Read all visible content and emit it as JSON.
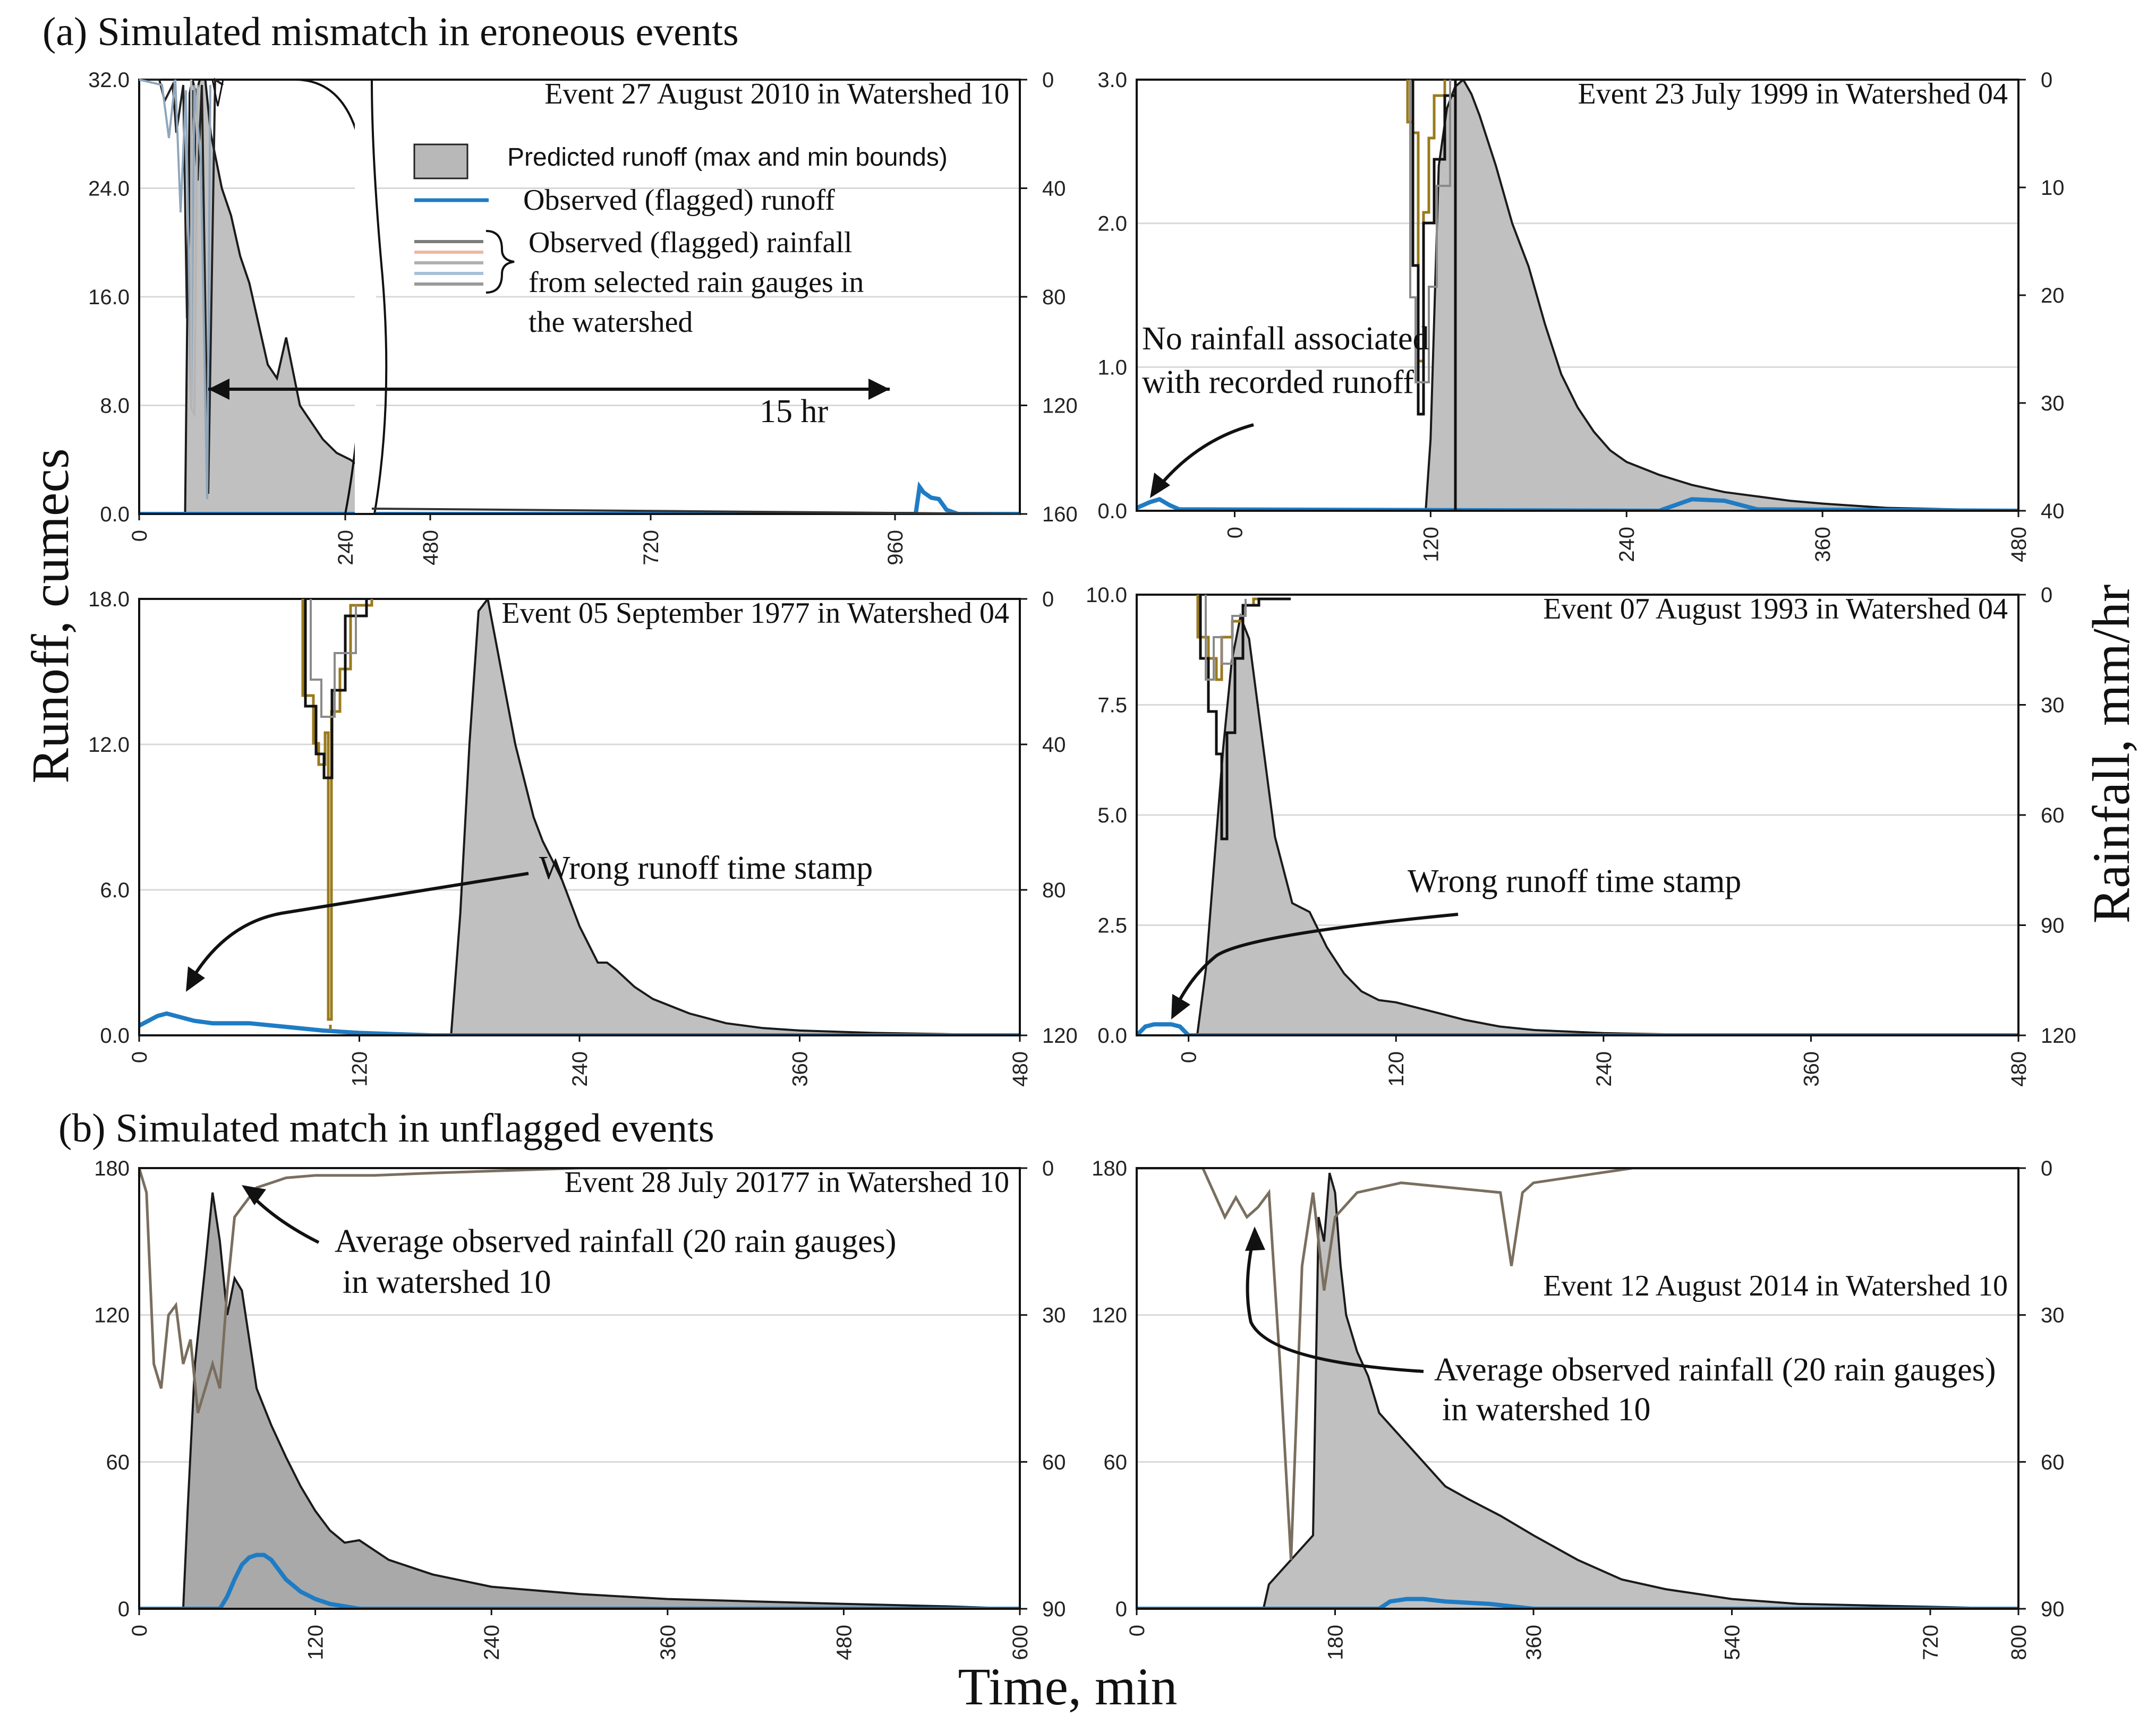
{
  "figure": {
    "section_a": "(a) Simulated mismatch in eroneous events",
    "section_b": "(b) Simulated match in unflagged events",
    "ylabel_left": "Runoff, cumecs",
    "ylabel_right": "Rainfall, mm/hr",
    "xlabel": "Time, min"
  },
  "legend": {
    "predicted": "Predicted runoff (max and min bounds)",
    "observed_runoff": "Observed (flagged) runoff",
    "rain_line1": "Observed (flagged) rainfall",
    "rain_line2": "from selected rain gauges in",
    "rain_line3": "the watershed"
  },
  "annotations": {
    "hr15": "15 hr",
    "norain1": "No rainfall associated",
    "norain2": "with recorded runoff",
    "wrong_ts": "Wrong runoff time stamp",
    "avg_rain1": "Average observed rainfall (20 rain gauges)",
    "avg_rain2": "in watershed 10"
  },
  "colors": {
    "fill": "#c0c0c0",
    "fill_dark": "#a9a9a9",
    "outline": "#1a1a1a",
    "runoff": "#1f7cc4",
    "rain_gold": "#9a7a1e",
    "rain_grey": "#8a8a8a",
    "rain_avg": "#7a6e5e",
    "grid": "#d8d8d8"
  },
  "chart_data": [
    {
      "id": "p1",
      "type": "area",
      "title": "Event 27 August 2010 in Watershed 10",
      "xlabel": "Time, min",
      "ylabel": "Runoff, cumecs",
      "y2label": "Rainfall, mm/hr",
      "xlim": [
        0,
        1080
      ],
      "ylim": [
        0,
        32
      ],
      "y2lim": [
        0,
        160
      ],
      "y2_inverted": true,
      "axis_break": "between 240 and 480",
      "xticks": [
        "0",
        "240",
        "480",
        "720",
        "960"
      ],
      "yticks": [
        "0.0",
        "8.0",
        "16.0",
        "24.0",
        "32.0"
      ],
      "y2ticks": [
        "0",
        "40",
        "80",
        "120",
        "160"
      ],
      "predicted_runoff": {
        "x": [
          0,
          50,
          55,
          58,
          62,
          66,
          72,
          78,
          84,
          90,
          100,
          110,
          120,
          130,
          140,
          150,
          160,
          175,
          185,
          190,
          200,
          215,
          230,
          240
        ],
        "y": [
          0,
          0,
          31,
          32,
          31,
          32,
          32,
          28,
          26,
          24,
          22,
          19,
          17,
          14,
          11,
          10,
          13,
          8,
          7,
          6.5,
          5.5,
          4.5,
          4,
          3.5
        ]
      },
      "observed_runoff": {
        "x": [
          0,
          945,
          950,
          955,
          965,
          975,
          985,
          1000,
          1080
        ],
        "y": [
          0,
          0,
          2.0,
          1.6,
          1.2,
          1.1,
          0.3,
          0,
          0
        ]
      },
      "rainfall_series": [
        "gauge_a",
        "gauge_b",
        "gauge_c"
      ]
    },
    {
      "id": "p2",
      "type": "area",
      "title": "Event 23 July 1999 in Watershed 04",
      "xlim": [
        -60,
        480
      ],
      "ylim": [
        0,
        3.0
      ],
      "y2lim": [
        0,
        40
      ],
      "y2_inverted": true,
      "xticks": [
        "0",
        "120",
        "240",
        "360",
        "480"
      ],
      "yticks": [
        "0.0",
        "1.0",
        "2.0",
        "3.0"
      ],
      "y2ticks": [
        "0",
        "10",
        "20",
        "30",
        "40"
      ],
      "predicted_runoff": {
        "x": [
          -60,
          117,
          120,
          125,
          130,
          135,
          140,
          145,
          150,
          160,
          170,
          180,
          190,
          200,
          210,
          220,
          230,
          240,
          260,
          280,
          300,
          320,
          340,
          360,
          400,
          440,
          480
        ],
        "y": [
          0,
          0,
          0.5,
          2.4,
          2.8,
          2.95,
          3.0,
          2.9,
          2.75,
          2.4,
          2.0,
          1.7,
          1.3,
          0.95,
          0.72,
          0.55,
          0.42,
          0.34,
          0.25,
          0.18,
          0.13,
          0.1,
          0.07,
          0.05,
          0.02,
          0.01,
          0
        ]
      },
      "observed_runoff": {
        "x": [
          -60,
          -52,
          -46,
          -40,
          -34,
          260,
          280,
          300,
          320,
          480
        ],
        "y": [
          0.02,
          0.06,
          0.08,
          0.04,
          0.01,
          0.0,
          0.08,
          0.07,
          0.01,
          0
        ]
      }
    },
    {
      "id": "p3",
      "type": "area",
      "title": "Event 05 September 1977 in Watershed 04",
      "xlim": [
        0,
        480
      ],
      "ylim": [
        0,
        18
      ],
      "y2lim": [
        0,
        120
      ],
      "y2_inverted": true,
      "xticks": [
        "0",
        "120",
        "240",
        "360",
        "480"
      ],
      "yticks": [
        "0.0",
        "6.0",
        "12.0",
        "18.0"
      ],
      "y2ticks": [
        "0",
        "40",
        "80",
        "120"
      ],
      "predicted_runoff": {
        "x": [
          0,
          170,
          175,
          180,
          185,
          190,
          195,
          200,
          205,
          210,
          215,
          220,
          230,
          240,
          250,
          255,
          260,
          270,
          280,
          300,
          320,
          340,
          360,
          400,
          440,
          480
        ],
        "y": [
          0,
          0,
          5,
          12,
          17.5,
          18,
          16,
          14,
          12,
          10.5,
          9,
          8,
          6.5,
          4.5,
          3,
          3.0,
          2.7,
          2.0,
          1.5,
          0.9,
          0.5,
          0.3,
          0.2,
          0.1,
          0.05,
          0
        ]
      },
      "observed_runoff": {
        "x": [
          0,
          5,
          10,
          15,
          20,
          30,
          40,
          60,
          80,
          100,
          120,
          140,
          160,
          480
        ],
        "y": [
          0.4,
          0.6,
          0.8,
          0.9,
          0.8,
          0.6,
          0.5,
          0.5,
          0.35,
          0.2,
          0.1,
          0.05,
          0.0,
          0
        ]
      }
    },
    {
      "id": "p4",
      "type": "area",
      "title": "Event 07 August 1993 in Watershed 04",
      "xlim": [
        -30,
        480
      ],
      "ylim": [
        0,
        10
      ],
      "y2lim": [
        0,
        120
      ],
      "y2_inverted": true,
      "xticks": [
        "0",
        "120",
        "240",
        "360",
        "480"
      ],
      "yticks": [
        "0.0",
        "2.5",
        "5.0",
        "7.5",
        "10.0"
      ],
      "y2ticks": [
        "0",
        "30",
        "60",
        "90",
        "120"
      ],
      "predicted_runoff": {
        "x": [
          -30,
          5,
          10,
          15,
          20,
          25,
          30,
          35,
          40,
          45,
          50,
          60,
          70,
          80,
          90,
          100,
          110,
          120,
          140,
          160,
          180,
          200,
          240,
          280,
          320,
          360,
          420,
          480
        ],
        "y": [
          0,
          0,
          1.5,
          4.0,
          6.5,
          8.5,
          9.5,
          9.0,
          7.5,
          6.0,
          4.5,
          3.0,
          2.8,
          2.0,
          1.4,
          1.0,
          0.8,
          0.75,
          0.55,
          0.35,
          0.2,
          0.12,
          0.05,
          0.02,
          0.01,
          0,
          0,
          0
        ]
      },
      "observed_runoff": {
        "x": [
          -30,
          -25,
          -20,
          -10,
          -5,
          0,
          480
        ],
        "y": [
          0.0,
          0.2,
          0.25,
          0.25,
          0.2,
          0.0,
          0
        ]
      }
    },
    {
      "id": "p5",
      "type": "area",
      "title": "Event 28 July 20177 in Watershed 10",
      "xlim": [
        0,
        600
      ],
      "ylim": [
        0,
        180
      ],
      "y2lim": [
        0,
        90
      ],
      "y2_inverted": true,
      "xticks": [
        "0",
        "120",
        "240",
        "360",
        "480",
        "600"
      ],
      "yticks": [
        "0",
        "60",
        "120",
        "180"
      ],
      "y2ticks": [
        "0",
        "30",
        "60",
        "90"
      ],
      "predicted_runoff": {
        "x": [
          0,
          30,
          33,
          38,
          45,
          50,
          55,
          60,
          65,
          70,
          75,
          80,
          90,
          100,
          110,
          120,
          130,
          140,
          150,
          170,
          200,
          240,
          300,
          360,
          420,
          480,
          550,
          600
        ],
        "y": [
          0,
          0,
          40,
          100,
          140,
          170,
          150,
          120,
          135,
          130,
          110,
          90,
          75,
          62,
          50,
          40,
          32,
          27,
          28,
          20,
          14,
          9,
          6,
          4,
          3,
          2,
          1,
          0
        ]
      },
      "observed_runoff": {
        "x": [
          0,
          55,
          60,
          65,
          70,
          75,
          80,
          85,
          90,
          95,
          100,
          110,
          120,
          130,
          150,
          600
        ],
        "y": [
          0,
          0,
          5,
          12,
          18,
          21,
          22,
          22,
          20,
          16,
          12,
          7,
          4,
          2,
          0,
          0
        ]
      },
      "avg_rainfall": {
        "x": [
          0,
          5,
          10,
          15,
          20,
          25,
          30,
          35,
          40,
          45,
          50,
          55,
          60,
          65,
          70,
          75,
          80,
          90,
          100,
          120,
          160,
          200,
          300,
          360
        ],
        "y": [
          0,
          5,
          40,
          45,
          30,
          28,
          40,
          35,
          50,
          45,
          40,
          45,
          25,
          10,
          8,
          6,
          4,
          3,
          2,
          1.5,
          1.5,
          1,
          0,
          0
        ]
      }
    },
    {
      "id": "p6",
      "type": "area",
      "title": "Event 12 August 2014 in Watershed 10",
      "xlim": [
        0,
        800
      ],
      "ylim": [
        0,
        180
      ],
      "y2lim": [
        0,
        90
      ],
      "y2_inverted": true,
      "xticks": [
        "0",
        "180",
        "360",
        "540",
        "720",
        "800"
      ],
      "yticks": [
        "0",
        "60",
        "120",
        "180"
      ],
      "y2ticks": [
        "0",
        "30",
        "60",
        "90"
      ],
      "predicted_runoff": {
        "x": [
          0,
          115,
          120,
          130,
          140,
          150,
          160,
          165,
          170,
          175,
          180,
          185,
          190,
          200,
          210,
          220,
          240,
          260,
          280,
          300,
          330,
          360,
          400,
          440,
          480,
          540,
          600,
          700,
          800
        ],
        "y": [
          0,
          0,
          10,
          15,
          20,
          25,
          30,
          160,
          150,
          178,
          170,
          140,
          120,
          105,
          95,
          80,
          70,
          60,
          50,
          45,
          38,
          30,
          20,
          12,
          8,
          4,
          2,
          1,
          0
        ]
      },
      "observed_runoff": {
        "x": [
          0,
          220,
          230,
          245,
          260,
          280,
          320,
          360,
          800
        ],
        "y": [
          0,
          0,
          3,
          4,
          4,
          3,
          2,
          0,
          0
        ]
      },
      "avg_rainfall": {
        "x": [
          0,
          60,
          70,
          80,
          90,
          100,
          110,
          120,
          130,
          140,
          150,
          160,
          170,
          180,
          200,
          240,
          330,
          340,
          350,
          360,
          420,
          450,
          800
        ],
        "y": [
          0,
          0,
          5,
          10,
          6,
          10,
          8,
          5,
          40,
          80,
          20,
          5,
          25,
          10,
          5,
          3,
          5,
          20,
          5,
          3,
          1,
          0,
          0
        ]
      }
    }
  ]
}
